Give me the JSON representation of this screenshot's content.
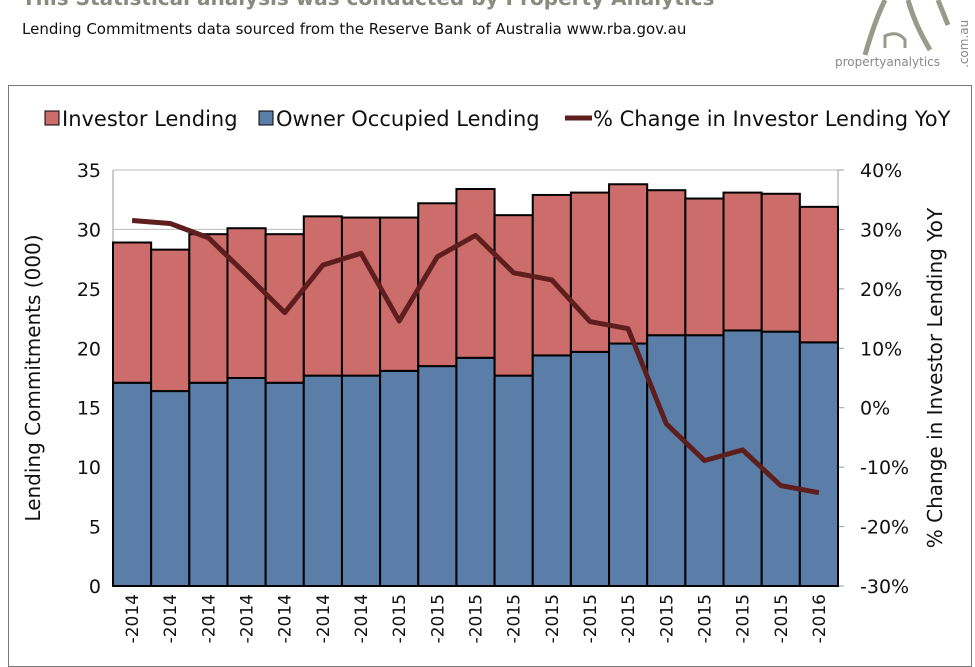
{
  "header": {
    "title": "This Statistical analysis was conducted by Property Analytics",
    "subtitle": "Lending Commitments data sourced from the Reserve Bank of Australia www.rba.gov.au"
  },
  "logo": {
    "text": "propertyanalytics",
    "suffix": ".com.au"
  },
  "colors": {
    "investor": "#cd6d6b",
    "owner": "#5b7ea8",
    "line": "#5e1e1e"
  },
  "chart_data": {
    "type": "bar",
    "stacked": true,
    "categories": [
      "-2014",
      "-2014",
      "-2014",
      "-2014",
      "-2014",
      "-2014",
      "-2014",
      "-2015",
      "-2015",
      "-2015",
      "-2015",
      "-2015",
      "-2015",
      "-2015",
      "-2015",
      "-2015",
      "-2015",
      "-2015",
      "-2016"
    ],
    "series": [
      {
        "name": "Investor Lending",
        "axis": "left",
        "values": [
          11.8,
          11.9,
          12.5,
          12.6,
          12.5,
          13.4,
          13.3,
          12.9,
          13.7,
          14.2,
          13.5,
          13.5,
          13.4,
          13.4,
          12.2,
          11.5,
          11.6,
          11.6,
          11.4
        ]
      },
      {
        "name": "Owner Occupied Lending",
        "axis": "left",
        "values": [
          17.1,
          16.4,
          17.1,
          17.5,
          17.1,
          17.7,
          17.7,
          18.1,
          18.5,
          19.2,
          17.7,
          19.4,
          19.7,
          20.4,
          21.1,
          21.1,
          21.5,
          21.4,
          20.5
        ]
      },
      {
        "name": "% Change in Investor Lending YoY",
        "type": "line",
        "axis": "right",
        "values": [
          31.5,
          31.0,
          28.6,
          22.4,
          16.0,
          24.0,
          26.0,
          14.6,
          25.4,
          29.0,
          22.7,
          21.5,
          14.5,
          13.3,
          -2.7,
          -8.9,
          -7.1,
          -13.1,
          -14.3
        ]
      }
    ],
    "ylabel": "Lending Commitments (000)",
    "y2label": "% Change in Investor Lending YoY",
    "ylim": [
      0,
      35
    ],
    "y2lim": [
      -30,
      40
    ],
    "yticks": [
      "0",
      "5",
      "10",
      "15",
      "20",
      "25",
      "30",
      "35"
    ],
    "y2ticks": [
      "-30%",
      "-20%",
      "-10%",
      "0%",
      "10%",
      "20%",
      "30%",
      "40%"
    ],
    "legend_position": "top",
    "grid": true
  }
}
